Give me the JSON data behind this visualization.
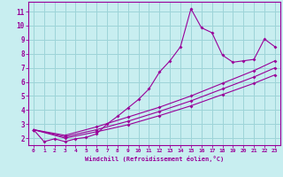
{
  "xlabel": "Windchill (Refroidissement éolien,°C)",
  "bg_color": "#c8eef0",
  "grid_color": "#9dd4d8",
  "line_color": "#990099",
  "xlim": [
    -0.5,
    23.5
  ],
  "ylim": [
    1.5,
    11.7
  ],
  "xticks": [
    0,
    1,
    2,
    3,
    4,
    5,
    6,
    7,
    8,
    9,
    10,
    11,
    12,
    13,
    14,
    15,
    16,
    17,
    18,
    19,
    20,
    21,
    22,
    23
  ],
  "yticks": [
    2,
    3,
    4,
    5,
    6,
    7,
    8,
    9,
    10,
    11
  ],
  "series1": [
    [
      0,
      2.6
    ],
    [
      1,
      1.75
    ],
    [
      2,
      1.95
    ],
    [
      3,
      1.75
    ],
    [
      4,
      1.95
    ],
    [
      5,
      2.05
    ],
    [
      6,
      2.3
    ],
    [
      7,
      3.0
    ],
    [
      8,
      3.55
    ],
    [
      9,
      4.15
    ],
    [
      10,
      4.75
    ],
    [
      11,
      5.5
    ],
    [
      12,
      6.7
    ],
    [
      13,
      7.5
    ],
    [
      14,
      8.5
    ],
    [
      15,
      11.2
    ],
    [
      16,
      9.85
    ],
    [
      17,
      9.5
    ],
    [
      18,
      7.9
    ],
    [
      19,
      7.4
    ],
    [
      20,
      7.5
    ],
    [
      21,
      7.6
    ],
    [
      22,
      9.05
    ],
    [
      23,
      8.5
    ]
  ],
  "series2": [
    [
      0,
      2.6
    ],
    [
      3,
      2.0
    ],
    [
      6,
      2.45
    ],
    [
      9,
      2.95
    ],
    [
      12,
      3.6
    ],
    [
      15,
      4.3
    ],
    [
      18,
      5.1
    ],
    [
      21,
      5.9
    ],
    [
      23,
      6.5
    ]
  ],
  "series3": [
    [
      0,
      2.6
    ],
    [
      3,
      2.1
    ],
    [
      6,
      2.6
    ],
    [
      9,
      3.2
    ],
    [
      12,
      3.9
    ],
    [
      15,
      4.65
    ],
    [
      18,
      5.5
    ],
    [
      21,
      6.35
    ],
    [
      23,
      7.0
    ]
  ],
  "series4": [
    [
      0,
      2.6
    ],
    [
      3,
      2.2
    ],
    [
      6,
      2.8
    ],
    [
      9,
      3.5
    ],
    [
      12,
      4.2
    ],
    [
      15,
      5.0
    ],
    [
      18,
      5.9
    ],
    [
      21,
      6.8
    ],
    [
      23,
      7.5
    ]
  ]
}
